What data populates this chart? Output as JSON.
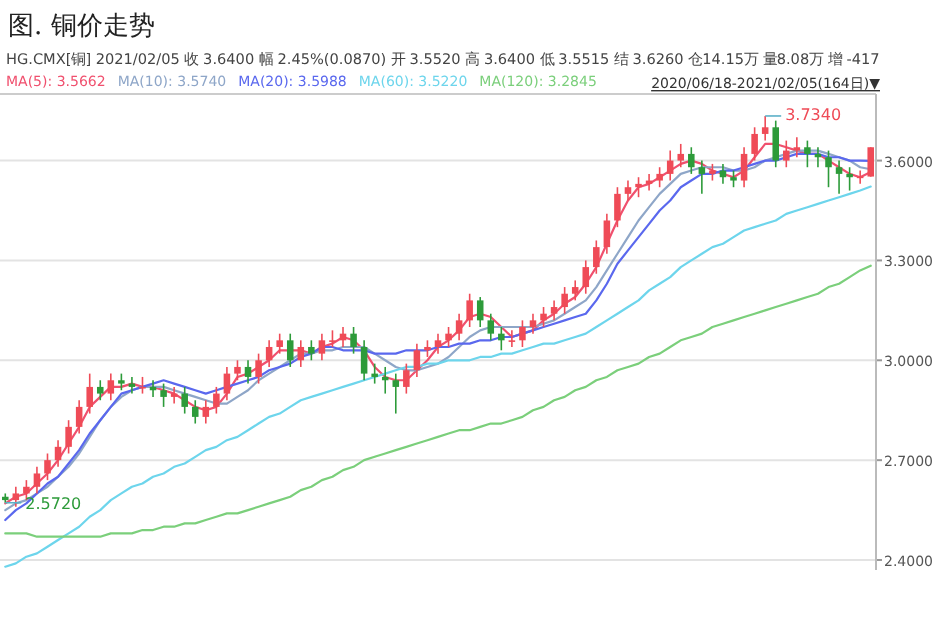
{
  "chart_data": {
    "type": "candlestick",
    "title": "图. 铜价走势",
    "subtitle": "HG.CMX[铜]   2021/02/05  收 3.6400  幅 2.45%(0.0870)  开 3.5520  高 3.6400  低 3.5515  结 3.6260  仓14.15万  量8.08万  增 -417",
    "annotations": [
      "2020/06/18-2021/02/05(164日)▼",
      "3.7340",
      "2.5720"
    ],
    "categories": [
      null,
      null,
      null,
      null,
      null,
      null,
      null,
      null,
      null,
      null,
      null,
      null,
      null,
      null,
      null,
      null,
      null,
      null,
      null,
      null,
      null,
      null,
      null,
      null,
      null,
      null,
      null,
      null,
      null,
      null,
      null,
      null,
      null,
      null,
      null,
      null,
      null,
      null,
      null,
      null,
      null,
      null,
      null,
      null,
      null,
      null,
      null,
      null,
      null,
      null,
      null,
      null,
      null,
      null,
      null,
      null,
      null,
      null,
      null,
      null,
      null,
      null,
      null,
      null,
      null,
      null,
      null,
      null,
      null,
      null,
      null,
      null,
      null,
      null,
      null,
      null,
      null,
      null,
      null,
      null,
      null,
      null,
      null
    ],
    "ohlc": [
      [
        2.59,
        2.6,
        2.572,
        2.58
      ],
      [
        2.58,
        2.62,
        2.56,
        2.6
      ],
      [
        2.6,
        2.64,
        2.58,
        2.62
      ],
      [
        2.62,
        2.68,
        2.6,
        2.66
      ],
      [
        2.66,
        2.72,
        2.64,
        2.7
      ],
      [
        2.7,
        2.76,
        2.68,
        2.74
      ],
      [
        2.74,
        2.82,
        2.72,
        2.8
      ],
      [
        2.8,
        2.88,
        2.78,
        2.86
      ],
      [
        2.86,
        2.96,
        2.84,
        2.92
      ],
      [
        2.92,
        2.94,
        2.88,
        2.9
      ],
      [
        2.9,
        2.96,
        2.88,
        2.94
      ],
      [
        2.94,
        2.96,
        2.91,
        2.93
      ],
      [
        2.93,
        2.95,
        2.9,
        2.92
      ],
      [
        2.92,
        2.95,
        2.9,
        2.92
      ],
      [
        2.92,
        2.94,
        2.89,
        2.91
      ],
      [
        2.91,
        2.93,
        2.86,
        2.89
      ],
      [
        2.89,
        2.92,
        2.87,
        2.9
      ],
      [
        2.9,
        2.92,
        2.84,
        2.86
      ],
      [
        2.86,
        2.88,
        2.81,
        2.83
      ],
      [
        2.83,
        2.88,
        2.81,
        2.86
      ],
      [
        2.86,
        2.92,
        2.84,
        2.9
      ],
      [
        2.9,
        2.98,
        2.88,
        2.96
      ],
      [
        2.96,
        3.0,
        2.94,
        2.98
      ],
      [
        2.98,
        3.0,
        2.93,
        2.95
      ],
      [
        2.95,
        3.02,
        2.93,
        3.0
      ],
      [
        3.0,
        3.06,
        2.98,
        3.04
      ],
      [
        3.04,
        3.08,
        3.02,
        3.06
      ],
      [
        3.06,
        3.08,
        2.98,
        3.0
      ],
      [
        3.0,
        3.06,
        2.98,
        3.04
      ],
      [
        3.04,
        3.06,
        3.0,
        3.02
      ],
      [
        3.02,
        3.08,
        3.0,
        3.06
      ],
      [
        3.06,
        3.09,
        3.04,
        3.06
      ],
      [
        3.06,
        3.1,
        3.04,
        3.08
      ],
      [
        3.08,
        3.1,
        3.02,
        3.04
      ],
      [
        3.04,
        3.06,
        2.94,
        2.96
      ],
      [
        2.96,
        2.99,
        2.93,
        2.95
      ],
      [
        2.95,
        2.98,
        2.9,
        2.94
      ],
      [
        2.94,
        2.96,
        2.84,
        2.92
      ],
      [
        2.92,
        2.99,
        2.9,
        2.97
      ],
      [
        2.97,
        3.05,
        2.95,
        3.03
      ],
      [
        3.03,
        3.06,
        3.01,
        3.04
      ],
      [
        3.04,
        3.08,
        3.02,
        3.06
      ],
      [
        3.06,
        3.1,
        3.04,
        3.08
      ],
      [
        3.08,
        3.14,
        3.06,
        3.12
      ],
      [
        3.12,
        3.2,
        3.1,
        3.18
      ],
      [
        3.18,
        3.19,
        3.1,
        3.12
      ],
      [
        3.12,
        3.14,
        3.06,
        3.08
      ],
      [
        3.08,
        3.1,
        3.03,
        3.06
      ],
      [
        3.06,
        3.09,
        3.04,
        3.06
      ],
      [
        3.06,
        3.12,
        3.04,
        3.1
      ],
      [
        3.1,
        3.14,
        3.08,
        3.12
      ],
      [
        3.12,
        3.16,
        3.1,
        3.14
      ],
      [
        3.14,
        3.18,
        3.12,
        3.16
      ],
      [
        3.16,
        3.22,
        3.14,
        3.2
      ],
      [
        3.2,
        3.24,
        3.18,
        3.22
      ],
      [
        3.22,
        3.3,
        3.2,
        3.28
      ],
      [
        3.28,
        3.36,
        3.26,
        3.34
      ],
      [
        3.34,
        3.44,
        3.32,
        3.42
      ],
      [
        3.42,
        3.52,
        3.4,
        3.5
      ],
      [
        3.5,
        3.54,
        3.48,
        3.52
      ],
      [
        3.52,
        3.55,
        3.49,
        3.53
      ],
      [
        3.53,
        3.56,
        3.51,
        3.54
      ],
      [
        3.54,
        3.58,
        3.52,
        3.56
      ],
      [
        3.56,
        3.63,
        3.54,
        3.6
      ],
      [
        3.6,
        3.65,
        3.58,
        3.62
      ],
      [
        3.62,
        3.64,
        3.56,
        3.58
      ],
      [
        3.58,
        3.6,
        3.5,
        3.56
      ],
      [
        3.56,
        3.59,
        3.54,
        3.57
      ],
      [
        3.57,
        3.59,
        3.53,
        3.55
      ],
      [
        3.55,
        3.57,
        3.52,
        3.54
      ],
      [
        3.54,
        3.64,
        3.52,
        3.62
      ],
      [
        3.62,
        3.7,
        3.6,
        3.68
      ],
      [
        3.68,
        3.734,
        3.66,
        3.7
      ],
      [
        3.7,
        3.72,
        3.58,
        3.6
      ],
      [
        3.6,
        3.66,
        3.58,
        3.63
      ],
      [
        3.63,
        3.67,
        3.61,
        3.64
      ],
      [
        3.64,
        3.66,
        3.58,
        3.62
      ],
      [
        3.62,
        3.64,
        3.58,
        3.61
      ],
      [
        3.61,
        3.63,
        3.52,
        3.58
      ],
      [
        3.58,
        3.6,
        3.5,
        3.56
      ],
      [
        3.56,
        3.58,
        3.51,
        3.55
      ],
      [
        3.55,
        3.57,
        3.53,
        3.552
      ],
      [
        3.552,
        3.64,
        3.5515,
        3.64
      ]
    ],
    "series": [
      {
        "type": "line",
        "name": "MA(5): 3.5662",
        "color": "#f0506e",
        "values": [
          2.57,
          2.59,
          2.6,
          2.63,
          2.66,
          2.7,
          2.75,
          2.8,
          2.86,
          2.89,
          2.92,
          2.92,
          2.93,
          2.92,
          2.92,
          2.91,
          2.9,
          2.88,
          2.86,
          2.85,
          2.86,
          2.9,
          2.95,
          2.96,
          2.98,
          3.0,
          3.03,
          3.03,
          3.03,
          3.02,
          3.04,
          3.05,
          3.07,
          3.06,
          3.03,
          2.98,
          2.95,
          2.94,
          2.94,
          2.97,
          3.0,
          3.04,
          3.06,
          3.09,
          3.13,
          3.14,
          3.13,
          3.1,
          3.07,
          3.08,
          3.09,
          3.12,
          3.14,
          3.17,
          3.19,
          3.23,
          3.28,
          3.35,
          3.42,
          3.48,
          3.52,
          3.53,
          3.55,
          3.57,
          3.59,
          3.6,
          3.59,
          3.57,
          3.56,
          3.55,
          3.57,
          3.61,
          3.65,
          3.65,
          3.64,
          3.63,
          3.62,
          3.62,
          3.6,
          3.58,
          3.56,
          3.55,
          3.566
        ]
      },
      {
        "type": "line",
        "name": "MA(10): 3.5740",
        "color": "#8ea6c8",
        "values": [
          2.55,
          2.57,
          2.58,
          2.6,
          2.62,
          2.65,
          2.68,
          2.72,
          2.77,
          2.82,
          2.86,
          2.89,
          2.91,
          2.92,
          2.92,
          2.92,
          2.91,
          2.9,
          2.89,
          2.88,
          2.87,
          2.87,
          2.89,
          2.91,
          2.94,
          2.96,
          2.98,
          3.0,
          3.02,
          3.02,
          3.03,
          3.03,
          3.04,
          3.04,
          3.04,
          3.02,
          3.0,
          2.98,
          2.97,
          2.97,
          2.98,
          2.99,
          3.01,
          3.04,
          3.07,
          3.09,
          3.1,
          3.1,
          3.1,
          3.1,
          3.1,
          3.11,
          3.12,
          3.14,
          3.16,
          3.18,
          3.22,
          3.27,
          3.32,
          3.37,
          3.42,
          3.46,
          3.5,
          3.53,
          3.56,
          3.57,
          3.58,
          3.58,
          3.58,
          3.57,
          3.57,
          3.58,
          3.6,
          3.61,
          3.62,
          3.63,
          3.63,
          3.63,
          3.62,
          3.61,
          3.6,
          3.58,
          3.574
        ]
      },
      {
        "type": "line",
        "name": "MA(20): 3.5988",
        "color": "#5a68ee",
        "values": [
          2.52,
          2.55,
          2.57,
          2.6,
          2.63,
          2.65,
          2.69,
          2.73,
          2.78,
          2.82,
          2.86,
          2.9,
          2.91,
          2.92,
          2.93,
          2.94,
          2.93,
          2.92,
          2.91,
          2.9,
          2.91,
          2.92,
          2.93,
          2.94,
          2.95,
          2.97,
          2.98,
          2.99,
          3.01,
          3.02,
          3.04,
          3.04,
          3.03,
          3.03,
          3.03,
          3.02,
          3.02,
          3.02,
          3.03,
          3.03,
          3.03,
          3.04,
          3.04,
          3.05,
          3.05,
          3.06,
          3.06,
          3.07,
          3.07,
          3.08,
          3.09,
          3.1,
          3.11,
          3.12,
          3.13,
          3.14,
          3.18,
          3.23,
          3.29,
          3.33,
          3.37,
          3.41,
          3.45,
          3.48,
          3.52,
          3.54,
          3.56,
          3.56,
          3.57,
          3.57,
          3.58,
          3.59,
          3.6,
          3.6,
          3.61,
          3.62,
          3.62,
          3.62,
          3.61,
          3.61,
          3.6,
          3.6,
          3.599
        ]
      },
      {
        "type": "line",
        "name": "MA(60): 3.5220",
        "color": "#6dd5ec",
        "values": [
          2.38,
          2.39,
          2.41,
          2.42,
          2.44,
          2.46,
          2.48,
          2.5,
          2.53,
          2.55,
          2.58,
          2.6,
          2.62,
          2.63,
          2.65,
          2.66,
          2.68,
          2.69,
          2.71,
          2.73,
          2.74,
          2.76,
          2.77,
          2.79,
          2.81,
          2.83,
          2.84,
          2.86,
          2.88,
          2.89,
          2.9,
          2.91,
          2.92,
          2.93,
          2.94,
          2.95,
          2.96,
          2.97,
          2.98,
          2.98,
          2.99,
          2.99,
          3.0,
          3.0,
          3.0,
          3.01,
          3.01,
          3.02,
          3.02,
          3.03,
          3.04,
          3.05,
          3.05,
          3.06,
          3.07,
          3.08,
          3.1,
          3.12,
          3.14,
          3.16,
          3.18,
          3.21,
          3.23,
          3.25,
          3.28,
          3.3,
          3.32,
          3.34,
          3.35,
          3.37,
          3.39,
          3.4,
          3.41,
          3.42,
          3.44,
          3.45,
          3.46,
          3.47,
          3.48,
          3.49,
          3.5,
          3.51,
          3.522
        ]
      },
      {
        "type": "line",
        "name": "MA(120): 3.2845",
        "color": "#7bcf7b",
        "values": [
          2.48,
          2.48,
          2.48,
          2.47,
          2.47,
          2.47,
          2.47,
          2.47,
          2.47,
          2.47,
          2.48,
          2.48,
          2.48,
          2.49,
          2.49,
          2.5,
          2.5,
          2.51,
          2.51,
          2.52,
          2.53,
          2.54,
          2.54,
          2.55,
          2.56,
          2.57,
          2.58,
          2.59,
          2.61,
          2.62,
          2.64,
          2.65,
          2.67,
          2.68,
          2.7,
          2.71,
          2.72,
          2.73,
          2.74,
          2.75,
          2.76,
          2.77,
          2.78,
          2.79,
          2.79,
          2.8,
          2.81,
          2.81,
          2.82,
          2.83,
          2.85,
          2.86,
          2.88,
          2.89,
          2.91,
          2.92,
          2.94,
          2.95,
          2.97,
          2.98,
          2.99,
          3.01,
          3.02,
          3.04,
          3.06,
          3.07,
          3.08,
          3.1,
          3.11,
          3.12,
          3.13,
          3.14,
          3.15,
          3.16,
          3.17,
          3.18,
          3.19,
          3.2,
          3.22,
          3.23,
          3.25,
          3.27,
          3.284
        ]
      }
    ],
    "ylim": [
      2.37,
      3.8
    ],
    "yticks": [
      {
        "value": 2.4,
        "label": "2.4000"
      },
      {
        "value": 2.7,
        "label": "2.7000"
      },
      {
        "value": 3.0,
        "label": "3.0000"
      },
      {
        "value": 3.3,
        "label": "3.3000"
      },
      {
        "value": 3.6,
        "label": "3.6000"
      }
    ],
    "grid": "y",
    "legend": "top left",
    "tick_labels": "y"
  }
}
